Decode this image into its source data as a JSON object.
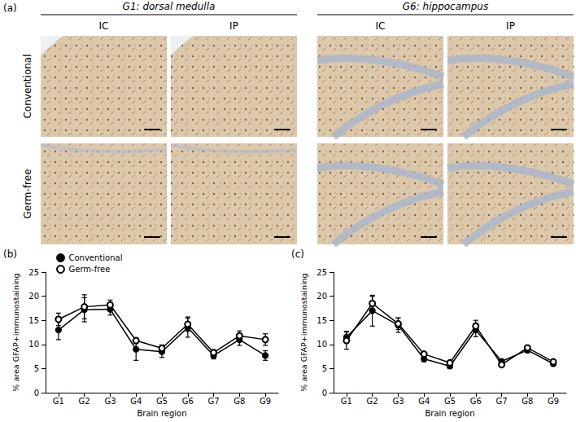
{
  "micrographs": {
    "label": "(a)",
    "groups": [
      {
        "title": "G1: dorsal medulla",
        "columns": [
          "IC",
          "IP"
        ]
      },
      {
        "title": "G6: hippocampus",
        "columns": [
          "IC",
          "IP"
        ]
      }
    ],
    "rows": [
      "Conventional",
      "Germ-free"
    ]
  },
  "chart_data": [
    {
      "type": "line",
      "label": "(b)",
      "x_label": "Brain region",
      "y_label": "% area GFAP+immunostaining",
      "categories": [
        "G1",
        "G2",
        "G3",
        "G4",
        "G5",
        "G6",
        "G7",
        "G8",
        "G9"
      ],
      "ylim": [
        0,
        25
      ],
      "yticks": [
        0,
        5,
        10,
        15,
        20,
        25
      ],
      "grid": false,
      "legend": "upper left",
      "series": [
        {
          "name": "Conventional",
          "color": "#000000",
          "marker": "circle",
          "values": [
            13,
            17.2,
            17.3,
            9,
            8.5,
            13.5,
            7.7,
            11,
            7.7
          ],
          "errors": [
            2,
            2.5,
            1.2,
            2.3,
            1.2,
            2,
            0.7,
            1.2,
            1
          ]
        },
        {
          "name": "Germ-free",
          "color": "#000000",
          "marker": "open_circle",
          "values": [
            15.2,
            17.8,
            18.2,
            10.8,
            9.2,
            14.2,
            8.3,
            11.8,
            11
          ],
          "errors": [
            1.3,
            2.5,
            1,
            0.6,
            0.7,
            1.5,
            0.6,
            1,
            1.2
          ]
        }
      ]
    },
    {
      "type": "line",
      "label": "(c)",
      "x_label": "Brain region",
      "y_label": "% area GFAP+immunostaining",
      "categories": [
        "G1",
        "G2",
        "G3",
        "G4",
        "G5",
        "G6",
        "G7",
        "G8",
        "G9"
      ],
      "ylim": [
        0,
        25
      ],
      "yticks": [
        0,
        5,
        10,
        15,
        20,
        25
      ],
      "grid": false,
      "series": [
        {
          "color": "#000000",
          "marker": "circle",
          "values": [
            11.5,
            17,
            14,
            7,
            5.5,
            13,
            6.5,
            8.8,
            6
          ],
          "errors": [
            1.2,
            3.2,
            1.5,
            0.6,
            0.5,
            1.4,
            0.4,
            0.5,
            0.4
          ]
        },
        {
          "color": "#000000",
          "marker": "open_circle",
          "values": [
            10.8,
            18.5,
            14.3,
            8,
            6.2,
            13.8,
            5.8,
            9.3,
            6.4
          ],
          "errors": [
            1.8,
            1.5,
            1.2,
            0.4,
            0.3,
            1.2,
            0.4,
            0.5,
            0.4
          ]
        }
      ]
    }
  ]
}
